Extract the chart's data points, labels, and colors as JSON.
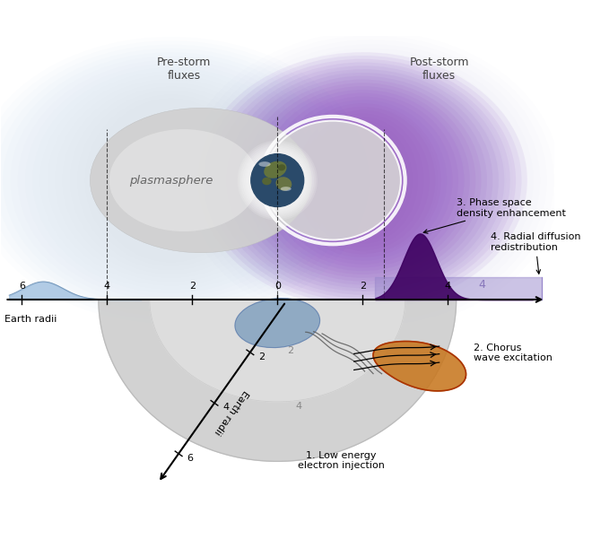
{
  "pre_storm_text": "Pre-storm\nfluxes",
  "post_storm_text": "Post-storm\nfluxes",
  "plasmasphere_text": "plasmasphere",
  "label1": "1. Low energy\nelectron injection",
  "label2": "2. Chorus\nwave excitation",
  "label3": "3. Phase space\ndensity enhancement",
  "label4": "4. Radial diffusion\nredistribution",
  "axis_label_h": "Earth radii",
  "axis_label_v": "Earth radii",
  "bg_color": "#ffffff",
  "pre_storm_glow": "#aac8e8",
  "post_storm_purple_inner": "#8800cc",
  "post_storm_purple_outer": "#cc99ee",
  "post_storm_blue_outer": "#aabbdd",
  "plasmasphere_left_color": "#c8c8c8",
  "plasmasphere_right_color": "#d8d8d8",
  "earth_ocean": "#2a4a6a",
  "earth_land": "#5a6830",
  "chorus_fill": "#c87820",
  "chorus_edge": "#aa3300",
  "psd_peak_color": "#3d0060",
  "psd_flat_color": "#9988cc",
  "inj_blob_color": "#7799bb",
  "bowl_outer": "#cccccc",
  "bowl_inner": "#e0e0e0"
}
